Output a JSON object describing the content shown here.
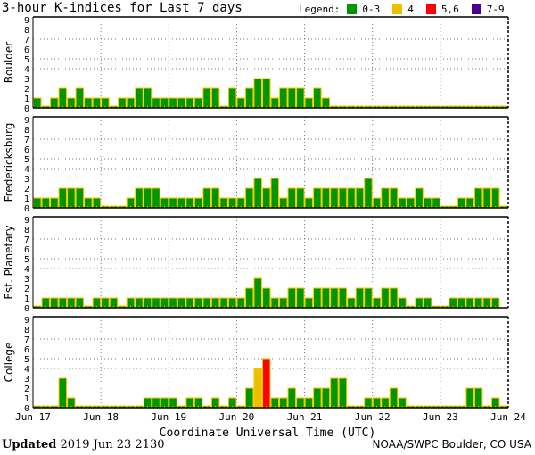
{
  "title": "3-hour K-indices for Last 7 days",
  "legend": {
    "label": "Legend:",
    "items": [
      {
        "label": "0-3",
        "color": "#009600"
      },
      {
        "label": "4",
        "color": "#f0be00"
      },
      {
        "label": "5,6",
        "color": "#ff0000"
      },
      {
        "label": "7-9",
        "color": "#4b0096"
      }
    ]
  },
  "footer": {
    "updated_label": "Updated",
    "updated_value": "2019 Jun 23 2130",
    "credit": "NOAA/SWPC Boulder, CO USA"
  },
  "chart_data": {
    "type": "bar",
    "xlabel": "Coordinate Universal Time (UTC)",
    "x_ticks": [
      "Jun 17",
      "Jun 18",
      "Jun 19",
      "Jun 20",
      "Jun 21",
      "Jun 22",
      "Jun 23",
      "Jun 24"
    ],
    "y_ticks": [
      "0",
      "1",
      "2",
      "3",
      "4",
      "5",
      "6",
      "7",
      "8",
      "9"
    ],
    "ylim": [
      0,
      9
    ],
    "gridlines_y": [
      4,
      5,
      7
    ],
    "bar_outline_color": "#ffc800",
    "series": [
      {
        "name": "Boulder",
        "values": [
          1,
          0,
          1,
          2,
          1,
          2,
          1,
          1,
          1,
          0,
          1,
          1,
          2,
          2,
          1,
          1,
          1,
          1,
          1,
          1,
          2,
          2,
          0,
          2,
          1,
          2,
          3,
          3,
          1,
          2,
          2,
          2,
          1,
          2,
          1,
          0,
          0,
          0,
          0,
          0,
          0,
          0,
          0,
          0,
          0,
          0,
          0,
          0,
          0,
          0,
          0,
          0,
          0,
          0,
          0,
          0
        ]
      },
      {
        "name": "Fredericksburg",
        "values": [
          1,
          1,
          1,
          2,
          2,
          2,
          1,
          1,
          0,
          0,
          0,
          1,
          2,
          2,
          2,
          1,
          1,
          1,
          1,
          1,
          2,
          2,
          1,
          1,
          1,
          2,
          3,
          2,
          3,
          1,
          2,
          2,
          1,
          2,
          2,
          2,
          2,
          2,
          2,
          3,
          1,
          2,
          2,
          1,
          1,
          2,
          1,
          1,
          0,
          0,
          1,
          1,
          2,
          2,
          2,
          0
        ]
      },
      {
        "name": "Est. Planetary",
        "values": [
          0,
          1,
          1,
          1,
          1,
          1,
          0,
          1,
          1,
          1,
          0,
          1,
          1,
          1,
          1,
          1,
          1,
          1,
          1,
          1,
          1,
          1,
          1,
          1,
          1,
          2,
          3,
          2,
          1,
          1,
          2,
          2,
          1,
          2,
          2,
          2,
          2,
          1,
          2,
          2,
          1,
          2,
          2,
          1,
          0,
          1,
          1,
          0,
          0,
          1,
          1,
          1,
          1,
          1,
          1,
          null
        ]
      },
      {
        "name": "College",
        "values": [
          0,
          0,
          0,
          3,
          1,
          0,
          0,
          0,
          0,
          0,
          0,
          0,
          0,
          1,
          1,
          1,
          1,
          0,
          1,
          1,
          0,
          1,
          0,
          1,
          0,
          2,
          4,
          5,
          1,
          1,
          2,
          1,
          1,
          2,
          2,
          3,
          3,
          0,
          0,
          1,
          1,
          1,
          2,
          1,
          0,
          0,
          0,
          0,
          0,
          0,
          0,
          2,
          2,
          0,
          1,
          0
        ]
      }
    ]
  }
}
